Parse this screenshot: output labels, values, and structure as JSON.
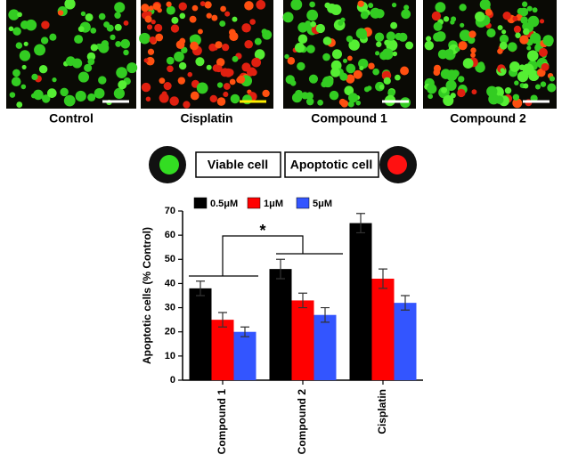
{
  "images": {
    "labels": [
      "Control",
      "Cisplatin",
      "Compound 1",
      "Compound 2"
    ]
  },
  "legend_diagram": {
    "viable": "Viable cell",
    "apoptotic": "Apoptotic cell"
  },
  "chart_data": {
    "type": "bar",
    "ylabel": "Apoptotic cells (% Control)",
    "categories": [
      "Compound 1",
      "Compound 2",
      "Cisplatin"
    ],
    "series": [
      {
        "name": "0.5μM",
        "color": "#000000",
        "values": [
          38,
          46,
          65
        ],
        "errors": [
          3,
          4,
          4
        ]
      },
      {
        "name": "1μM",
        "color": "#ff0000",
        "values": [
          25,
          33,
          42
        ],
        "errors": [
          3,
          3,
          4
        ]
      },
      {
        "name": "5μM",
        "color": "#3355ff",
        "values": [
          20,
          27,
          32
        ],
        "errors": [
          2,
          3,
          3
        ]
      }
    ],
    "ylim": [
      0,
      70
    ],
    "yticks": [
      0,
      10,
      20,
      30,
      40,
      50,
      60,
      70
    ],
    "annotation": "*"
  }
}
